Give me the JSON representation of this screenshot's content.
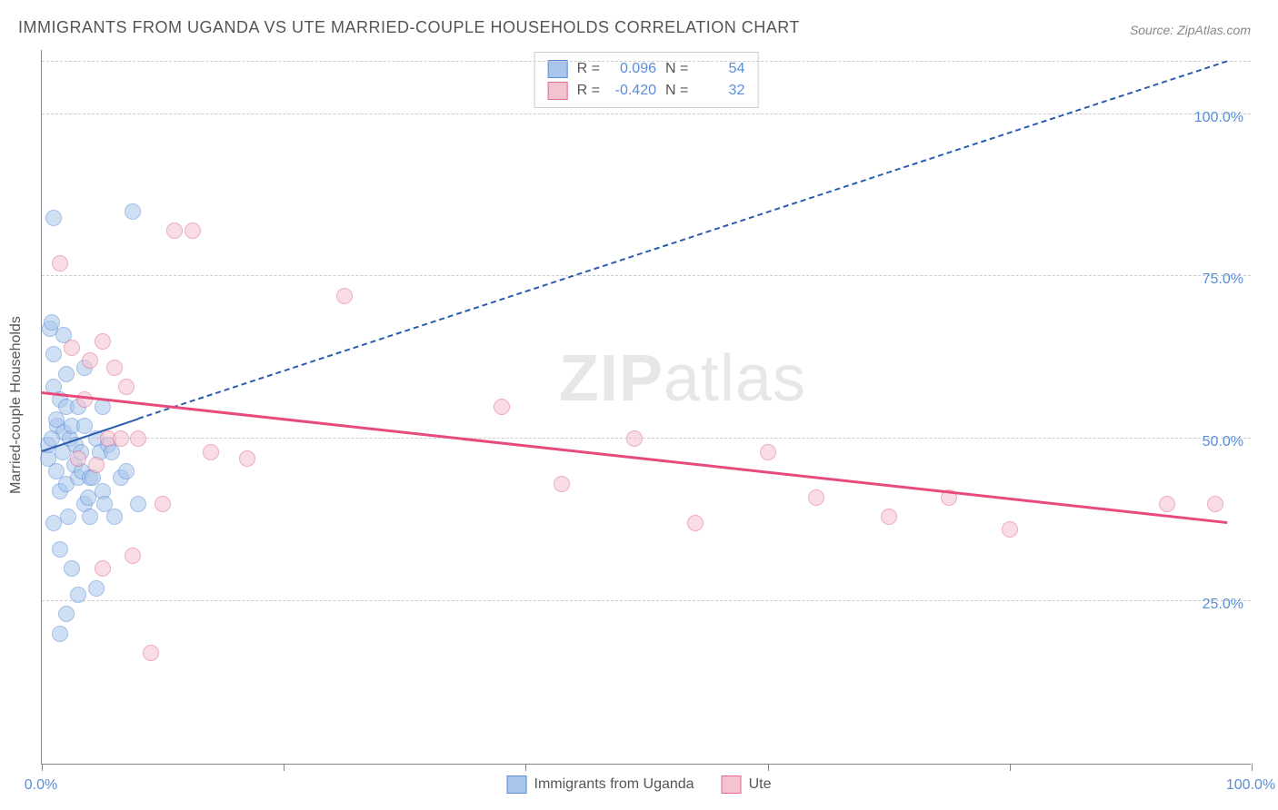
{
  "title": "IMMIGRANTS FROM UGANDA VS UTE MARRIED-COUPLE HOUSEHOLDS CORRELATION CHART",
  "source": "Source: ZipAtlas.com",
  "watermark_zip": "ZIP",
  "watermark_atlas": "atlas",
  "y_axis_title": "Married-couple Households",
  "chart": {
    "type": "scatter",
    "background_color": "#ffffff",
    "grid_color": "#cccccc",
    "border_color": "#888888",
    "xlim": [
      0,
      100
    ],
    "ylim": [
      0,
      110
    ],
    "x_ticks": [
      0,
      20,
      40,
      60,
      80,
      100
    ],
    "x_tick_labels": {
      "0": "0.0%",
      "100": "100.0%"
    },
    "y_gridlines": [
      25,
      50,
      75,
      100,
      108
    ],
    "y_tick_labels": {
      "25": "25.0%",
      "50": "50.0%",
      "75": "75.0%",
      "100": "100.0%"
    },
    "marker_radius": 8,
    "marker_stroke_width": 1.5,
    "series": [
      {
        "name": "Immigrants from Uganda",
        "fill_color": "#a8c6ec",
        "stroke_color": "#5b8dd6",
        "fill_opacity": 0.55,
        "R": "0.096",
        "N": "54",
        "trend": {
          "x1": 0,
          "y1": 48,
          "x2": 8,
          "y2": 53,
          "dash_x2": 98,
          "dash_y2": 108,
          "color": "#2a5db0",
          "width": 2
        },
        "points": [
          [
            0.5,
            47
          ],
          [
            0.5,
            49
          ],
          [
            0.7,
            67
          ],
          [
            0.8,
            68
          ],
          [
            1.0,
            84
          ],
          [
            1.0,
            63
          ],
          [
            1.0,
            58
          ],
          [
            1.2,
            45
          ],
          [
            1.3,
            52
          ],
          [
            1.5,
            56
          ],
          [
            1.5,
            42
          ],
          [
            1.5,
            20
          ],
          [
            1.7,
            48
          ],
          [
            1.8,
            51
          ],
          [
            1.8,
            66
          ],
          [
            2.0,
            55
          ],
          [
            2.0,
            60
          ],
          [
            2.0,
            43
          ],
          [
            2.2,
            38
          ],
          [
            2.3,
            50
          ],
          [
            2.5,
            52
          ],
          [
            2.5,
            30
          ],
          [
            2.7,
            46
          ],
          [
            2.8,
            49
          ],
          [
            3.0,
            55
          ],
          [
            3.0,
            44
          ],
          [
            3.0,
            26
          ],
          [
            3.2,
            48
          ],
          [
            3.3,
            45
          ],
          [
            3.5,
            40
          ],
          [
            3.5,
            61
          ],
          [
            3.8,
            41
          ],
          [
            4.0,
            44
          ],
          [
            4.0,
            38
          ],
          [
            4.2,
            44
          ],
          [
            4.5,
            50
          ],
          [
            4.5,
            27
          ],
          [
            4.8,
            48
          ],
          [
            5.0,
            55
          ],
          [
            5.0,
            42
          ],
          [
            5.2,
            40
          ],
          [
            5.5,
            49
          ],
          [
            5.8,
            48
          ],
          [
            6.0,
            38
          ],
          [
            6.5,
            44
          ],
          [
            7.0,
            45
          ],
          [
            7.5,
            85
          ],
          [
            8.0,
            40
          ],
          [
            2.0,
            23
          ],
          [
            1.5,
            33
          ],
          [
            1.0,
            37
          ],
          [
            0.8,
            50
          ],
          [
            1.2,
            53
          ],
          [
            3.5,
            52
          ]
        ]
      },
      {
        "name": "Ute",
        "fill_color": "#f5c3d0",
        "stroke_color": "#e06a8c",
        "fill_opacity": 0.55,
        "R": "-0.420",
        "N": "32",
        "trend": {
          "x1": 0,
          "y1": 57,
          "x2": 98,
          "y2": 37,
          "color": "#e84b7a",
          "width": 2.5
        },
        "points": [
          [
            1.5,
            77
          ],
          [
            2.5,
            64
          ],
          [
            3.0,
            47
          ],
          [
            3.5,
            56
          ],
          [
            4.0,
            62
          ],
          [
            4.5,
            46
          ],
          [
            5.0,
            65
          ],
          [
            5.5,
            50
          ],
          [
            6.0,
            61
          ],
          [
            6.5,
            50
          ],
          [
            7.0,
            58
          ],
          [
            7.5,
            32
          ],
          [
            8.0,
            50
          ],
          [
            9.0,
            17
          ],
          [
            10.0,
            40
          ],
          [
            11.0,
            82
          ],
          [
            12.5,
            82
          ],
          [
            14.0,
            48
          ],
          [
            17.0,
            47
          ],
          [
            25.0,
            72
          ],
          [
            38.0,
            55
          ],
          [
            43.0,
            43
          ],
          [
            49.0,
            50
          ],
          [
            54.0,
            37
          ],
          [
            60.0,
            48
          ],
          [
            64.0,
            41
          ],
          [
            70.0,
            38
          ],
          [
            75.0,
            41
          ],
          [
            80.0,
            36
          ],
          [
            93.0,
            40
          ],
          [
            97.0,
            40
          ],
          [
            5.0,
            30
          ]
        ]
      }
    ],
    "legend_top": {
      "R_label": "R =",
      "N_label": "N ="
    },
    "legend_bottom": [
      {
        "label": "Immigrants from Uganda",
        "fill": "#a8c6ec",
        "stroke": "#5b8dd6"
      },
      {
        "label": "Ute",
        "fill": "#f5c3d0",
        "stroke": "#e06a8c"
      }
    ]
  }
}
